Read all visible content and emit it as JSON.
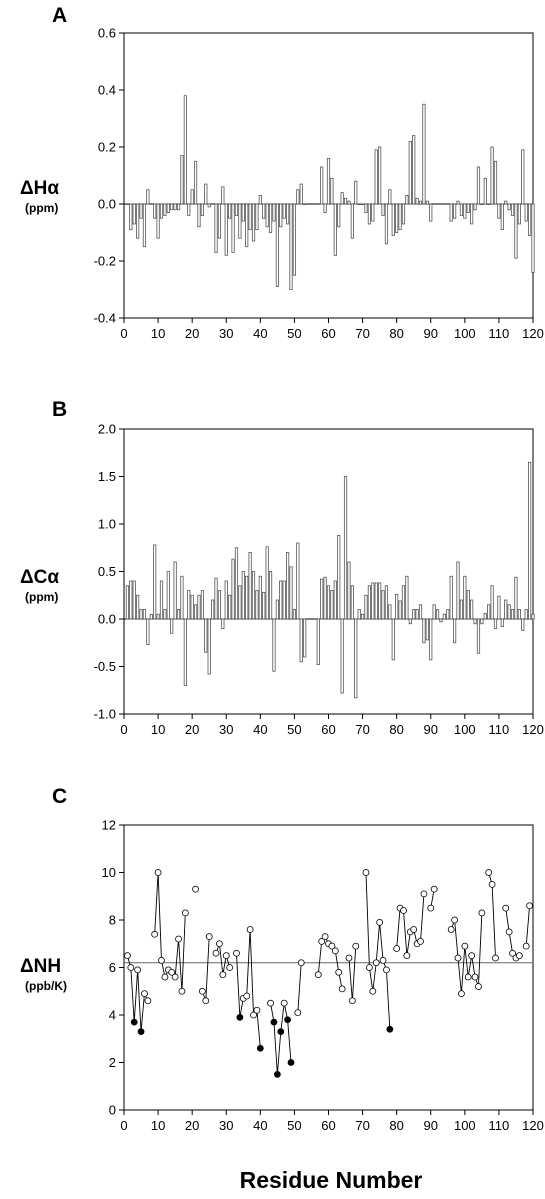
{
  "figure": {
    "x_axis_title": "Residue Number"
  },
  "chart_data": [
    {
      "id": "A",
      "type": "bar",
      "panel_label": "A",
      "ylabel": "ΔHα",
      "yunit": "(ppm)",
      "xlabel": "Residue Number",
      "xlim": [
        0,
        120
      ],
      "ylim": [
        -0.4,
        0.6
      ],
      "xticks": [
        "0",
        "10",
        "20",
        "30",
        "40",
        "50",
        "60",
        "70",
        "80",
        "90",
        "100",
        "110",
        "120"
      ],
      "yticks": [
        "-0.4",
        "-0.2",
        "0.0",
        "0.2",
        "0.4",
        "0.6"
      ],
      "grid": false,
      "x": [
        1,
        2,
        3,
        4,
        5,
        6,
        7,
        9,
        10,
        11,
        12,
        13,
        14,
        15,
        16,
        17,
        18,
        19,
        20,
        21,
        22,
        23,
        24,
        25,
        27,
        28,
        29,
        30,
        31,
        32,
        33,
        34,
        35,
        36,
        37,
        38,
        39,
        40,
        41,
        42,
        43,
        44,
        45,
        46,
        47,
        48,
        49,
        50,
        51,
        52,
        53,
        58,
        59,
        60,
        61,
        62,
        63,
        64,
        65,
        66,
        67,
        68,
        69,
        70,
        71,
        72,
        73,
        74,
        75,
        76,
        77,
        78,
        79,
        80,
        81,
        82,
        83,
        84,
        85,
        86,
        87,
        88,
        89,
        90,
        96,
        97,
        98,
        99,
        100,
        101,
        102,
        103,
        104,
        105,
        106,
        107,
        108,
        109,
        110,
        111,
        112,
        113,
        114,
        115,
        116,
        117,
        118,
        119,
        120
      ],
      "values": [
        0.0,
        -0.09,
        -0.07,
        -0.12,
        -0.05,
        -0.15,
        0.05,
        -0.05,
        -0.12,
        -0.05,
        -0.04,
        -0.03,
        -0.02,
        -0.02,
        -0.02,
        0.17,
        0.38,
        -0.04,
        0.05,
        0.15,
        -0.08,
        -0.04,
        0.07,
        -0.01,
        -0.17,
        -0.12,
        0.06,
        -0.18,
        -0.05,
        -0.17,
        -0.04,
        -0.12,
        -0.06,
        -0.15,
        -0.09,
        -0.13,
        -0.09,
        0.03,
        -0.05,
        -0.08,
        -0.1,
        -0.06,
        -0.29,
        -0.08,
        -0.05,
        -0.07,
        -0.3,
        -0.25,
        0.05,
        0.07,
        0.0,
        0.13,
        -0.03,
        0.16,
        0.09,
        -0.18,
        -0.08,
        0.04,
        0.02,
        0.01,
        -0.12,
        0.08,
        0.0,
        0.0,
        -0.03,
        -0.07,
        -0.06,
        0.19,
        0.2,
        -0.04,
        -0.14,
        0.05,
        -0.11,
        -0.1,
        -0.09,
        -0.07,
        0.03,
        0.22,
        0.24,
        0.02,
        0.01,
        0.35,
        0.01,
        -0.06,
        -0.06,
        -0.05,
        0.01,
        -0.04,
        -0.05,
        -0.03,
        -0.07,
        -0.02,
        0.13,
        0.0,
        0.09,
        0.0,
        0.2,
        0.15,
        -0.05,
        -0.09,
        0.01,
        -0.02,
        -0.04,
        -0.19,
        -0.07,
        0.19,
        -0.06,
        -0.11,
        -0.24
      ]
    },
    {
      "id": "B",
      "type": "bar",
      "panel_label": "B",
      "ylabel": "ΔCα",
      "yunit": "(ppm)",
      "xlabel": "Residue Number",
      "xlim": [
        0,
        120
      ],
      "ylim": [
        -1.0,
        2.0
      ],
      "xticks": [
        "0",
        "10",
        "20",
        "30",
        "40",
        "50",
        "60",
        "70",
        "80",
        "90",
        "100",
        "110",
        "120"
      ],
      "yticks": [
        "-1.0",
        "-0.5",
        "0.0",
        "0.5",
        "1.0",
        "1.5",
        "2.0"
      ],
      "grid": false,
      "x": [
        1,
        2,
        3,
        4,
        5,
        6,
        7,
        8,
        9,
        10,
        11,
        12,
        13,
        14,
        15,
        16,
        17,
        18,
        19,
        20,
        21,
        22,
        23,
        24,
        25,
        26,
        27,
        28,
        29,
        30,
        31,
        32,
        33,
        34,
        35,
        36,
        37,
        38,
        39,
        40,
        41,
        42,
        43,
        44,
        45,
        46,
        47,
        48,
        49,
        50,
        51,
        52,
        53,
        57,
        58,
        59,
        60,
        61,
        62,
        63,
        64,
        65,
        66,
        67,
        68,
        69,
        70,
        71,
        72,
        73,
        74,
        75,
        76,
        77,
        78,
        79,
        80,
        81,
        82,
        83,
        84,
        85,
        86,
        87,
        88,
        89,
        90,
        91,
        92,
        93,
        94,
        95,
        96,
        97,
        98,
        99,
        100,
        101,
        102,
        103,
        104,
        105,
        106,
        107,
        108,
        109,
        110,
        111,
        112,
        113,
        114,
        115,
        116,
        117,
        118,
        119,
        120
      ],
      "values": [
        0.35,
        0.4,
        0.4,
        0.25,
        0.1,
        0.1,
        -0.27,
        0.05,
        0.78,
        0.05,
        0.4,
        0.1,
        0.5,
        -0.15,
        0.6,
        0.1,
        0.45,
        -0.7,
        0.3,
        0.25,
        0.15,
        0.25,
        0.3,
        -0.35,
        -0.58,
        0.2,
        0.43,
        0.3,
        -0.1,
        0.4,
        0.25,
        0.63,
        0.75,
        0.35,
        0.5,
        0.45,
        0.7,
        0.5,
        0.3,
        0.45,
        0.28,
        0.76,
        0.5,
        -0.55,
        0.2,
        0.4,
        0.4,
        0.7,
        0.55,
        0.1,
        0.8,
        -0.45,
        -0.4,
        -0.48,
        0.42,
        0.44,
        0.35,
        0.3,
        0.4,
        0.88,
        -0.78,
        1.5,
        0.6,
        0.35,
        -0.83,
        0.1,
        0.05,
        0.25,
        0.35,
        0.38,
        0.38,
        0.38,
        0.3,
        0.35,
        0.15,
        -0.43,
        0.26,
        0.19,
        0.35,
        0.45,
        -0.05,
        0.1,
        0.1,
        0.15,
        -0.25,
        -0.22,
        -0.43,
        0.15,
        0.1,
        -0.03,
        0.05,
        0.1,
        0.45,
        -0.25,
        0.6,
        0.2,
        0.45,
        0.3,
        0.2,
        -0.05,
        -0.36,
        -0.05,
        0.06,
        0.15,
        0.35,
        -0.1,
        0.24,
        -0.08,
        0.2,
        0.15,
        0.1,
        0.44,
        0.1,
        -0.12,
        0.1,
        1.65,
        0.05
      ]
    },
    {
      "id": "C",
      "type": "line",
      "panel_label": "C",
      "ylabel": "ΔNH",
      "yunit": "(ppb/K)",
      "xlabel": "Residue Number",
      "xlim": [
        0,
        120
      ],
      "ylim": [
        0,
        12
      ],
      "xticks": [
        "0",
        "10",
        "20",
        "30",
        "40",
        "50",
        "60",
        "70",
        "80",
        "90",
        "100",
        "110",
        "120"
      ],
      "yticks": [
        "0",
        "2",
        "4",
        "6",
        "8",
        "10",
        "12"
      ],
      "grid": false,
      "reference_line_y": 6.2,
      "segments": [
        [
          [
            1,
            6.5
          ],
          [
            2,
            6.0
          ],
          [
            3,
            3.7
          ],
          [
            4,
            5.9
          ],
          [
            5,
            3.3
          ],
          [
            6,
            4.9
          ],
          [
            7,
            4.6
          ]
        ],
        [
          [
            9,
            7.4
          ],
          [
            10,
            10.0
          ],
          [
            11,
            6.3
          ],
          [
            12,
            5.6
          ],
          [
            13,
            5.9
          ],
          [
            14,
            5.8
          ],
          [
            15,
            5.6
          ],
          [
            16,
            7.2
          ],
          [
            17,
            5.0
          ],
          [
            18,
            8.3
          ]
        ],
        [
          [
            23,
            5.0
          ],
          [
            24,
            4.6
          ],
          [
            25,
            7.3
          ]
        ],
        [
          [
            27,
            6.6
          ],
          [
            28,
            7.0
          ],
          [
            29,
            5.7
          ],
          [
            30,
            6.5
          ],
          [
            31,
            6.0
          ]
        ],
        [
          [
            33,
            6.6
          ],
          [
            34,
            3.9
          ],
          [
            35,
            4.7
          ],
          [
            36,
            4.8
          ],
          [
            37,
            7.6
          ],
          [
            38,
            4.0
          ],
          [
            39,
            4.2
          ],
          [
            40,
            2.6
          ]
        ],
        [
          [
            43,
            4.5
          ],
          [
            44,
            3.7
          ],
          [
            45,
            1.5
          ],
          [
            46,
            3.3
          ],
          [
            47,
            4.5
          ],
          [
            48,
            3.8
          ],
          [
            49,
            2.0
          ]
        ],
        [
          [
            51,
            4.1
          ],
          [
            52,
            6.2
          ]
        ],
        [
          [
            57,
            5.7
          ],
          [
            58,
            7.1
          ],
          [
            59,
            7.3
          ],
          [
            60,
            7.0
          ],
          [
            61,
            6.9
          ],
          [
            62,
            6.7
          ],
          [
            63,
            5.8
          ],
          [
            64,
            5.1
          ]
        ],
        [
          [
            66,
            6.4
          ],
          [
            67,
            4.6
          ],
          [
            68,
            6.9
          ]
        ],
        [
          [
            71,
            10.0
          ],
          [
            72,
            6.0
          ],
          [
            73,
            5.0
          ],
          [
            74,
            6.2
          ],
          [
            75,
            7.9
          ],
          [
            76,
            6.3
          ],
          [
            77,
            5.9
          ],
          [
            78,
            3.4
          ]
        ],
        [
          [
            80,
            6.8
          ],
          [
            81,
            8.5
          ],
          [
            82,
            8.4
          ],
          [
            83,
            6.5
          ],
          [
            84,
            7.5
          ],
          [
            85,
            7.6
          ],
          [
            86,
            7.0
          ],
          [
            87,
            7.1
          ],
          [
            88,
            9.1
          ]
        ],
        [
          [
            90,
            8.5
          ],
          [
            91,
            9.3
          ]
        ],
        [
          [
            96,
            7.6
          ],
          [
            97,
            8.0
          ],
          [
            98,
            6.4
          ],
          [
            99,
            4.9
          ],
          [
            100,
            6.9
          ],
          [
            101,
            5.6
          ],
          [
            102,
            6.5
          ],
          [
            103,
            5.6
          ],
          [
            104,
            5.2
          ],
          [
            105,
            8.3
          ]
        ],
        [
          [
            107,
            10.0
          ],
          [
            108,
            9.5
          ],
          [
            109,
            6.4
          ]
        ],
        [
          [
            112,
            8.5
          ],
          [
            113,
            7.5
          ],
          [
            114,
            6.6
          ],
          [
            115,
            6.4
          ],
          [
            116,
            6.5
          ]
        ],
        [
          [
            118,
            6.9
          ],
          [
            119,
            8.6
          ]
        ]
      ],
      "isolated_points": [
        [
          21,
          9.3
        ]
      ],
      "filled_points": [
        [
          3,
          3.7
        ],
        [
          5,
          3.3
        ],
        [
          34,
          3.9
        ],
        [
          40,
          2.6
        ],
        [
          44,
          3.7
        ],
        [
          45,
          1.5
        ],
        [
          46,
          3.3
        ],
        [
          48,
          3.8
        ],
        [
          49,
          2.0
        ],
        [
          78,
          3.4
        ]
      ]
    }
  ]
}
